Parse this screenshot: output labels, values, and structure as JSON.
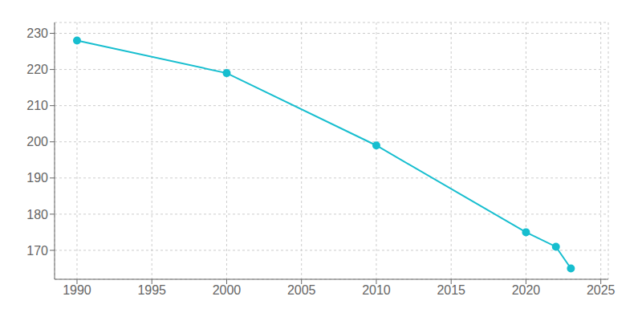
{
  "chart_data": {
    "type": "line",
    "x": [
      1990,
      2000,
      2010,
      2020,
      2022,
      2023
    ],
    "values": [
      228,
      219,
      199,
      175,
      171,
      165
    ],
    "color": "#17becf",
    "marker": "circle",
    "xlim": [
      1988.5,
      2025.5
    ],
    "ylim": [
      162,
      233
    ],
    "xticks": [
      1990,
      1995,
      2000,
      2005,
      2010,
      2015,
      2020,
      2025
    ],
    "yticks": [
      170,
      180,
      190,
      200,
      210,
      220,
      230
    ],
    "grid": true
  }
}
